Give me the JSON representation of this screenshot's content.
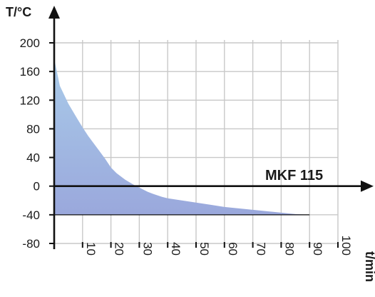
{
  "chart_data": {
    "type": "area",
    "ylabel": "T/°C",
    "xlabel": "t/min",
    "annotation": "MKF 115",
    "xlim": [
      0,
      100
    ],
    "ylim": [
      -80,
      200
    ],
    "x_ticks": [
      10,
      20,
      30,
      40,
      50,
      60,
      70,
      80,
      90,
      100
    ],
    "y_ticks": [
      200,
      160,
      120,
      80,
      40,
      0,
      -40,
      -80
    ],
    "x_tick_labels": [
      "10",
      "20",
      "30",
      "40",
      "50",
      "60",
      "70",
      "80",
      "90",
      "100"
    ],
    "y_tick_labels": [
      "200",
      "160",
      "120",
      "80",
      "40",
      "0",
      "-40",
      "-80"
    ],
    "grid": true,
    "baseline": -40,
    "fill_color_top": "#a9cbe9",
    "fill_color_bottom": "#9aa8dc",
    "grid_color": "#c8c8c8",
    "axis_color": "#111111",
    "series": [
      {
        "x": [
          0,
          2,
          5,
          8,
          10,
          12,
          15,
          18,
          20,
          22,
          25,
          28,
          30,
          33,
          35,
          38,
          40,
          45,
          50,
          55,
          60,
          65,
          70,
          75,
          80,
          85,
          90
        ],
        "y": [
          178,
          140,
          115,
          95,
          82,
          70,
          54,
          38,
          26,
          18,
          9,
          2,
          -2,
          -8,
          -11,
          -15,
          -17,
          -20,
          -23,
          -26,
          -29,
          -31,
          -33,
          -35,
          -37,
          -39,
          -40
        ]
      }
    ]
  }
}
